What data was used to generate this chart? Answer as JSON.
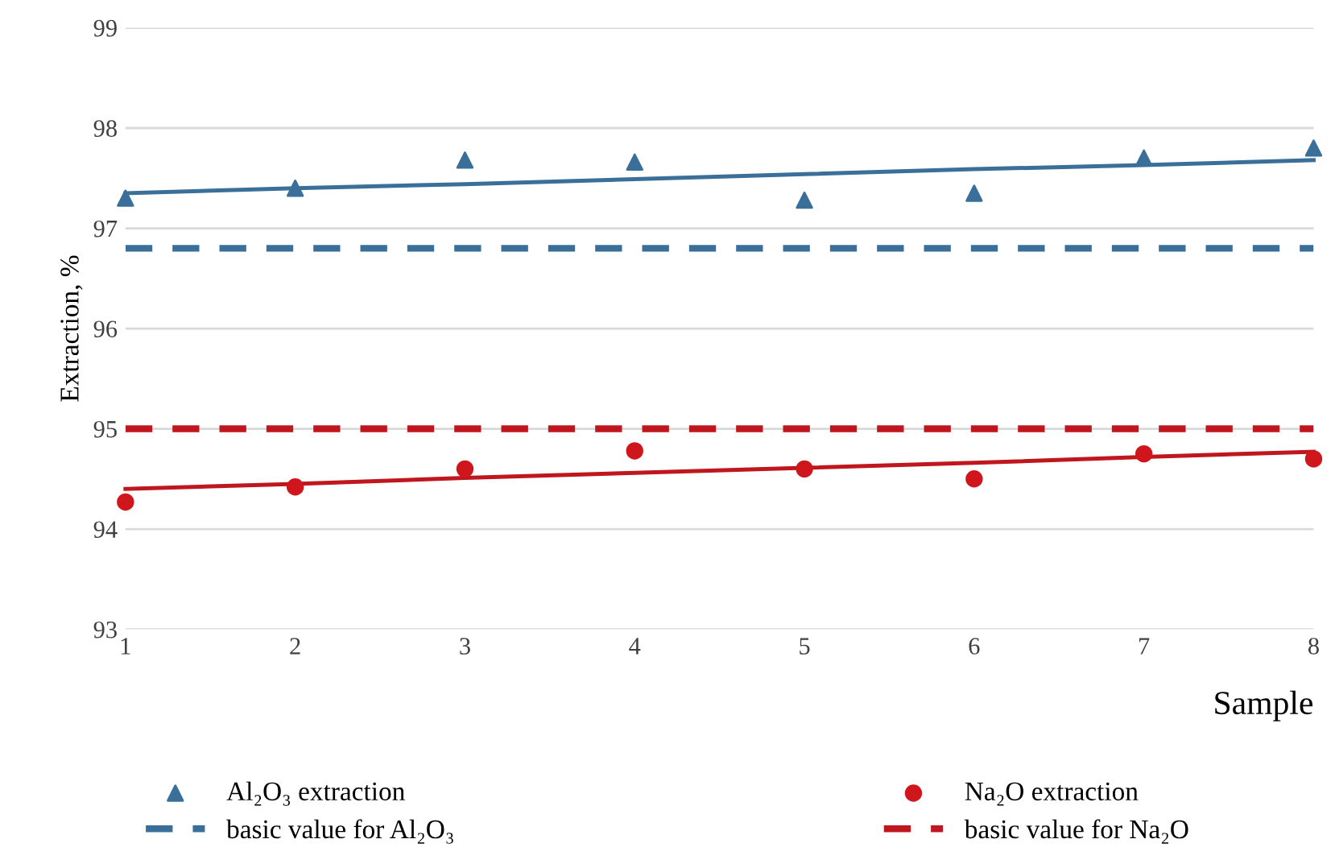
{
  "chart_data": {
    "type": "scatter",
    "xlabel": "Sample",
    "ylabel": "Extraction, %",
    "x": [
      1,
      2,
      3,
      4,
      5,
      6,
      7,
      8
    ],
    "series": [
      {
        "name": "Al₂O₃ extraction",
        "color": "#3a6f9a",
        "marker": "triangle",
        "values": [
          97.3,
          97.4,
          97.68,
          97.66,
          97.28,
          97.35,
          97.7,
          97.8
        ]
      },
      {
        "name": "Na₂O extraction",
        "color": "#d0161d",
        "marker": "circle",
        "values": [
          94.27,
          94.42,
          94.6,
          94.78,
          94.6,
          94.5,
          94.75,
          94.7
        ]
      },
      {
        "type": "line",
        "color": "#3a6f9a",
        "values": [
          97.35,
          97.4,
          97.44,
          97.49,
          97.54,
          97.59,
          97.63,
          97.68
        ]
      },
      {
        "type": "line",
        "color": "#c0161d",
        "values": [
          94.4,
          94.45,
          94.51,
          94.56,
          94.61,
          94.66,
          94.72,
          94.77
        ]
      }
    ],
    "ref_lines": [
      {
        "axis": "y",
        "value": 96.8,
        "label": "basic value for Al₂O₃",
        "color": "#3a6f9a",
        "line_style": "dashed"
      },
      {
        "axis": "y",
        "value": 95.0,
        "label": "basic value for Na₂O",
        "color": "#c0161d",
        "line_style": "dashed"
      }
    ],
    "xlim": [
      1,
      8
    ],
    "xticks": [
      1,
      2,
      3,
      4,
      5,
      6,
      7,
      8
    ],
    "ylim": [
      93,
      99
    ],
    "yticks": [
      93,
      94,
      95,
      96,
      97,
      98,
      99
    ],
    "grid": "y",
    "legend": "bottom"
  }
}
